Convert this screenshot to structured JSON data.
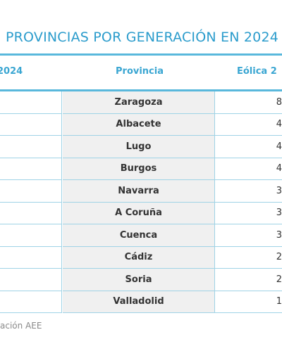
{
  "title": "PROVINCIAS POR GENERACIÓN EN 2024",
  "table": {
    "headers": [
      "2024",
      "Provincia",
      "Eólica 2"
    ],
    "rows": [
      [
        "Zaragoza",
        "8"
      ],
      [
        "Albacete",
        "4"
      ],
      [
        "Lugo",
        "4"
      ],
      [
        "Burgos",
        "4"
      ],
      [
        "Navarra",
        "3"
      ],
      [
        "A Coruña",
        "3"
      ],
      [
        "Cuenca",
        "3"
      ],
      [
        "Cádiz",
        "2"
      ],
      [
        "Soria",
        "2"
      ],
      [
        "Valladolid",
        "1"
      ]
    ]
  },
  "footer": "ación AEE"
}
